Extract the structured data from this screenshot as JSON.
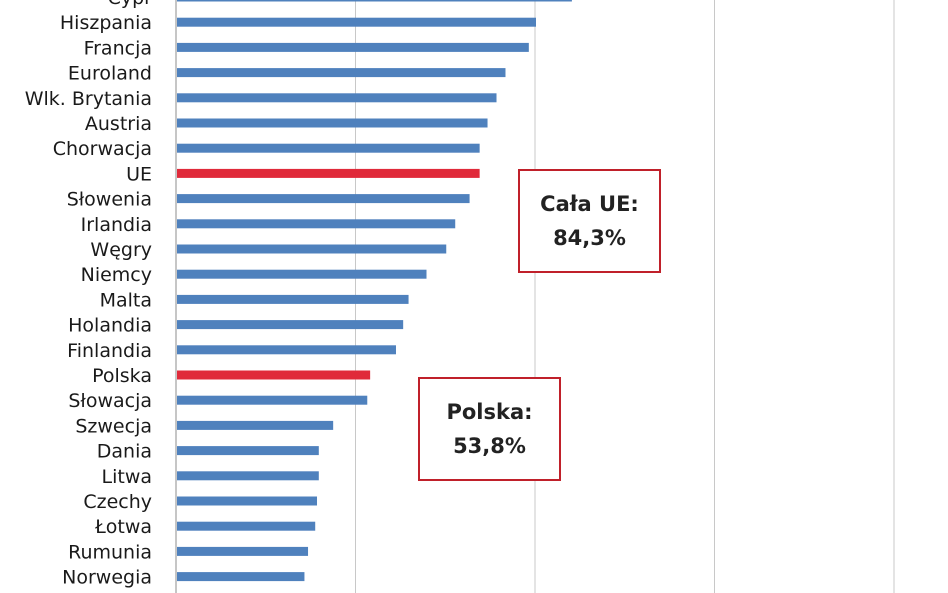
{
  "chart_data": {
    "type": "bar",
    "orientation": "horizontal",
    "categories": [
      "Cypr",
      "Hiszpania",
      "Francja",
      "Euroland",
      "Wlk. Brytania",
      "Austria",
      "Chorwacja",
      "UE",
      "Słowenia",
      "Irlandia",
      "Węgry",
      "Niemcy",
      "Malta",
      "Holandia",
      "Finlandia",
      "Polska",
      "Słowacja",
      "Szwecja",
      "Dania",
      "Litwa",
      "Czechy",
      "Łotwa",
      "Rumunia",
      "Norwegia"
    ],
    "values": [
      110,
      100,
      98,
      91.5,
      89,
      86.5,
      84.3,
      84.3,
      81.5,
      77.5,
      75,
      69.5,
      64.5,
      63,
      61,
      53.8,
      53,
      43.5,
      39.5,
      39.5,
      39,
      38.5,
      36.5,
      35.5
    ],
    "highlighted": [
      "UE",
      "Polska"
    ],
    "bar_color": "#4f81bd",
    "highlight_color": "#e02a3a",
    "xlim": [
      0,
      200
    ],
    "grid": true,
    "annotations": [
      {
        "line1": "Cała UE:",
        "line2": "84,3%"
      },
      {
        "line1": "Polska:",
        "line2": "53,8%"
      }
    ]
  }
}
